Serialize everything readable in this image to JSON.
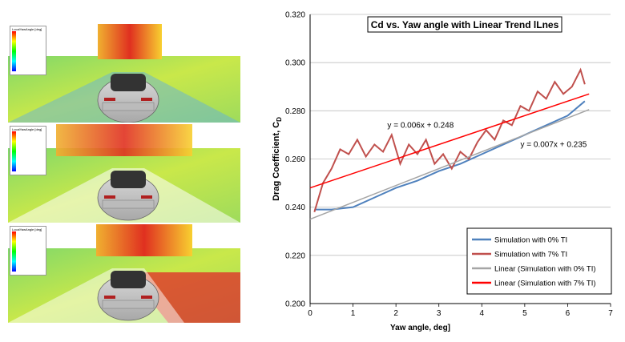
{
  "panels": [
    {
      "legend_title": "LocalYawAngle [deg]",
      "legend_ticks": [
        "8",
        "6",
        "4",
        "2",
        "0",
        "-2",
        "-4",
        "-6",
        "-8"
      ]
    },
    {
      "legend_title": "LocalYawAngle [deg]",
      "legend_ticks": [
        "8",
        "6",
        "4",
        "2",
        "0",
        "-2",
        "-4",
        "-6",
        "-8"
      ]
    },
    {
      "legend_title": "LocalYawAngle [deg]",
      "legend_ticks": [
        "8",
        "6",
        "4",
        "2",
        "0",
        "-2",
        "-4",
        "-6",
        "-8"
      ]
    }
  ],
  "chart_data": {
    "type": "line",
    "title": "Cd vs. Yaw angle with Linear Trend lLnes",
    "xlabel": "Yaw angle, deg]",
    "ylabel": "Drag Coefficient, C",
    "ylabel_sub": "D",
    "xlim": [
      0,
      7
    ],
    "ylim": [
      0.2,
      0.32
    ],
    "x_ticks": [
      "0",
      "1",
      "2",
      "3",
      "4",
      "5",
      "6",
      "7"
    ],
    "y_ticks": [
      "0.200",
      "0.220",
      "0.240",
      "0.260",
      "0.280",
      "0.300",
      "0.320"
    ],
    "series": [
      {
        "name": "Simulation with 0% TI",
        "color": "#4f81bd",
        "x": [
          0.1,
          0.5,
          1.0,
          1.5,
          2.0,
          2.5,
          3.0,
          3.5,
          4.0,
          4.5,
          5.0,
          5.5,
          6.0,
          6.4
        ],
        "values": [
          0.239,
          0.239,
          0.24,
          0.244,
          0.248,
          0.251,
          0.255,
          0.258,
          0.262,
          0.266,
          0.27,
          0.274,
          0.278,
          0.284
        ]
      },
      {
        "name": "Simulation with 7% TI",
        "color": "#c0504d",
        "x": [
          0.1,
          0.3,
          0.5,
          0.7,
          0.9,
          1.1,
          1.3,
          1.5,
          1.7,
          1.9,
          2.1,
          2.3,
          2.5,
          2.7,
          2.9,
          3.1,
          3.3,
          3.5,
          3.7,
          3.9,
          4.1,
          4.3,
          4.5,
          4.7,
          4.9,
          5.1,
          5.3,
          5.5,
          5.7,
          5.9,
          6.1,
          6.3,
          6.4
        ],
        "values": [
          0.238,
          0.25,
          0.256,
          0.264,
          0.262,
          0.268,
          0.261,
          0.266,
          0.263,
          0.27,
          0.258,
          0.266,
          0.262,
          0.268,
          0.258,
          0.262,
          0.256,
          0.263,
          0.26,
          0.267,
          0.272,
          0.268,
          0.276,
          0.274,
          0.282,
          0.28,
          0.288,
          0.285,
          0.292,
          0.287,
          0.29,
          0.297,
          0.291
        ]
      },
      {
        "name": "Linear (Simulation with 0% TI)",
        "color": "#a5a5a5",
        "trend": true,
        "x": [
          0,
          6.5
        ],
        "values": [
          0.235,
          0.2805
        ]
      },
      {
        "name": "Linear (Simulation with 7% TI)",
        "color": "#ff0000",
        "trend": true,
        "x": [
          0,
          6.5
        ],
        "values": [
          0.248,
          0.287
        ]
      }
    ],
    "annotations": [
      {
        "text": "y = 0.006x + 0.248",
        "x": 1.8,
        "y": 0.273
      },
      {
        "text": "y = 0.007x + 0.235",
        "x": 4.9,
        "y": 0.265
      }
    ],
    "legend_position": "bottom-right"
  }
}
